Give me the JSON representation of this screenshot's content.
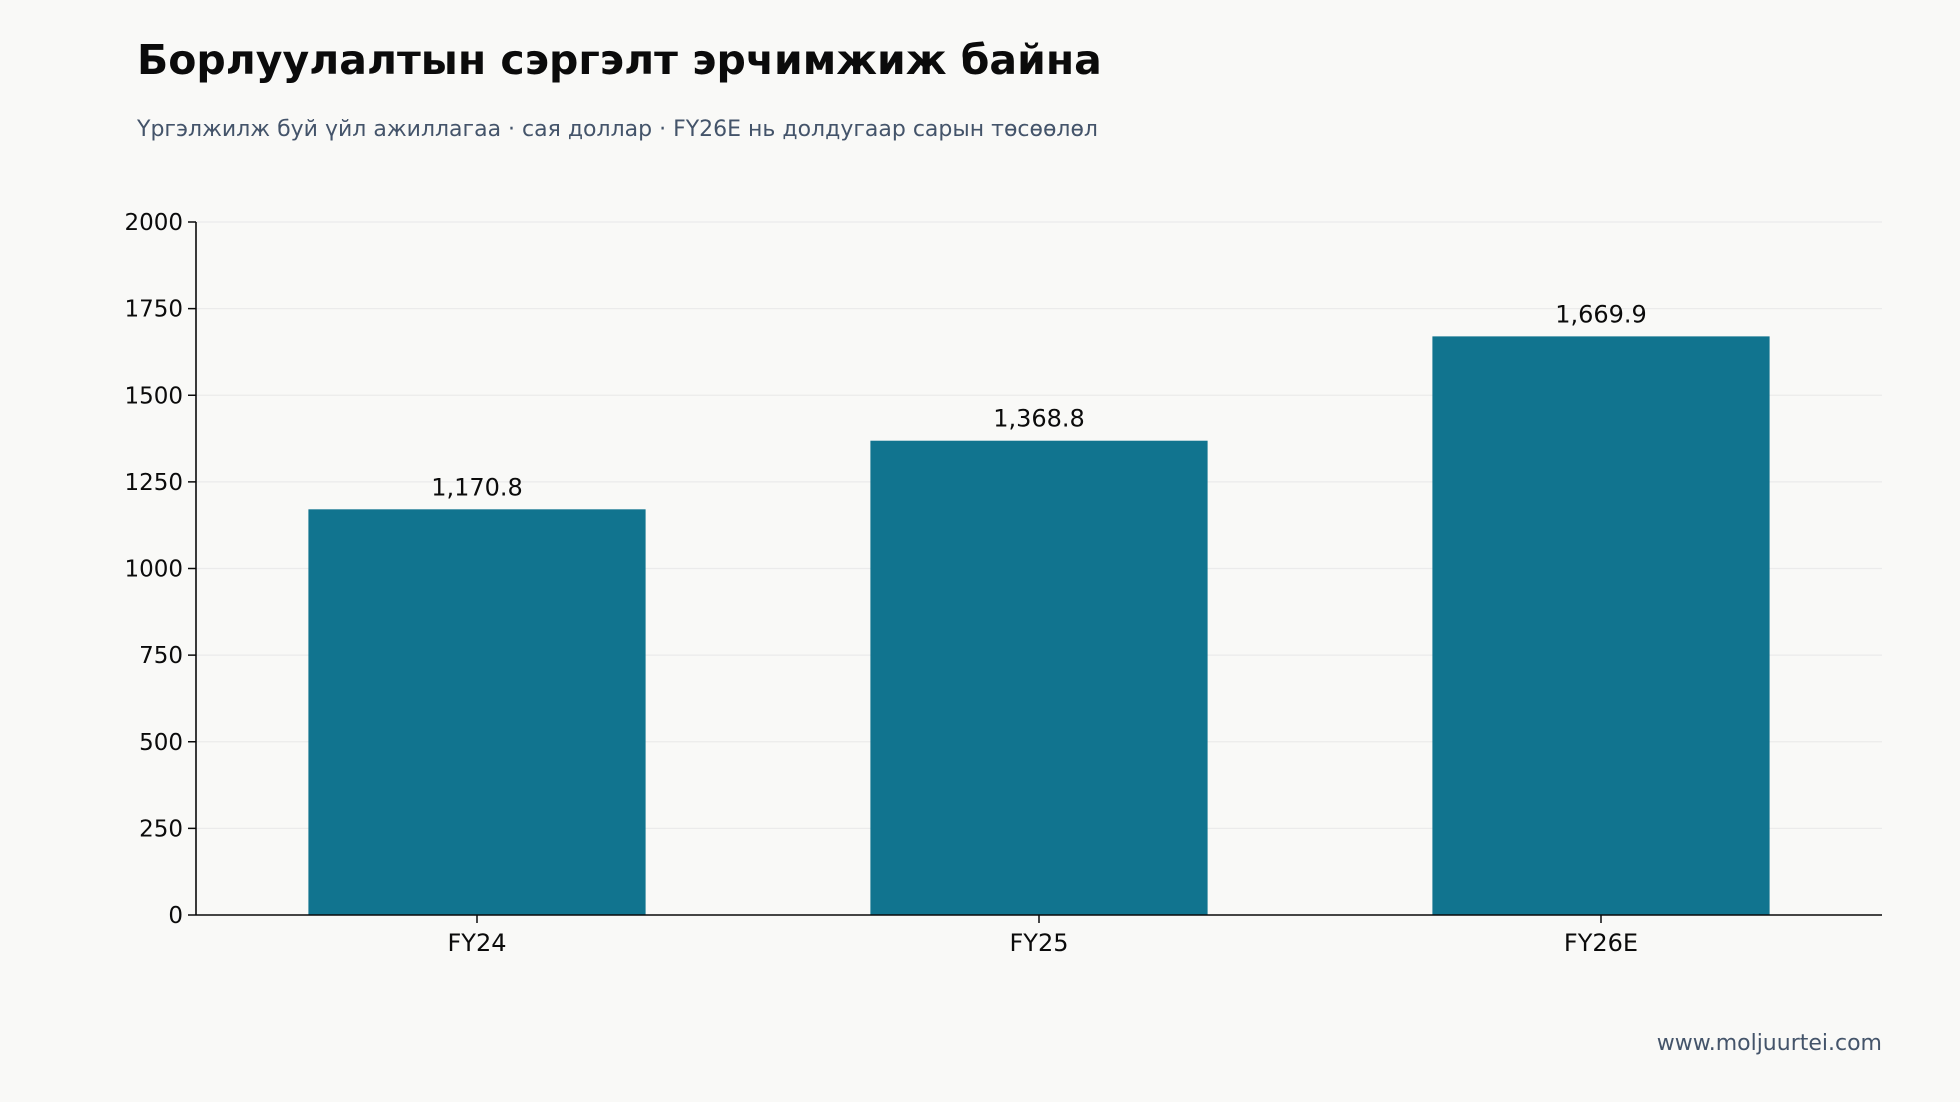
{
  "header": {
    "title": "Борлуулалтын сэргэлт эрчимжиж байна",
    "subtitle": "Үргэлжилж буй үйл ажиллагаа · сая доллар · FY26E нь долдугаар сарын төсөөлөл"
  },
  "footer": {
    "source": "www.moljuurtei.com"
  },
  "colors": {
    "bar": "#11748f",
    "axis": "#0b0b0b",
    "grid": "#ebebeb",
    "text": "#0b0b0b",
    "muted": "#44546a",
    "background": "#f9f9f7"
  },
  "chart_data": {
    "type": "bar",
    "categories": [
      "FY24",
      "FY25",
      "FY26E"
    ],
    "values": [
      1170.8,
      1368.8,
      1669.9
    ],
    "value_labels": [
      "1,170.8",
      "1,368.8",
      "1,669.9"
    ],
    "yticks": [
      0,
      250,
      500,
      750,
      1000,
      1250,
      1500,
      1750,
      2000
    ],
    "ylim": [
      0,
      2000
    ],
    "grid": true,
    "legend": "none",
    "title": "Борлуулалтын сэргэлт эрчимжиж байна",
    "subtitle": "Үргэлжилж буй үйл ажиллагаа · сая доллар · FY26E нь долдугаар сарын төсөөлөл",
    "xlabel": "",
    "ylabel": ""
  }
}
